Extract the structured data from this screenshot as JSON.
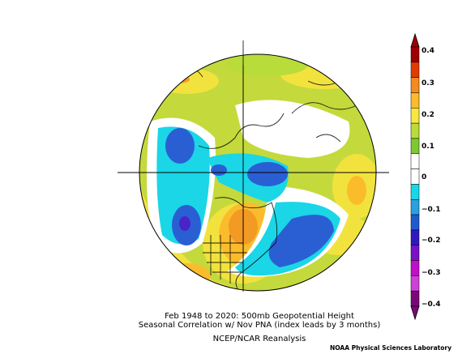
{
  "caption": {
    "line1": "Feb 1948 to 2020: 500mb Geopotential Height",
    "line2": "Seasonal Correlation w/ Nov PNA (index leads by 3 months)",
    "line3": "NCEP/NCAR Reanalysis"
  },
  "credit": "NOAA Physical Sciences Laboratory",
  "colorbar": {
    "labels": [
      "0.4",
      "0.3",
      "0.2",
      "0.1",
      "0",
      "−0.1",
      "−0.2",
      "−0.3",
      "−0.4"
    ],
    "colors": [
      "#a00000",
      "#e03c00",
      "#f68a1e",
      "#fdbb2c",
      "#f7e840",
      "#b8dc3a",
      "#7ec832",
      "#ffffff",
      "#ffffff",
      "#18d8e8",
      "#2aa0e0",
      "#1f5bd0",
      "#3018c0",
      "#7a10c8",
      "#c010c8",
      "#d040d8",
      "#7a0878"
    ]
  },
  "map": {
    "projection": "north-polar-stereographic",
    "background_color": "#c2d83c"
  }
}
